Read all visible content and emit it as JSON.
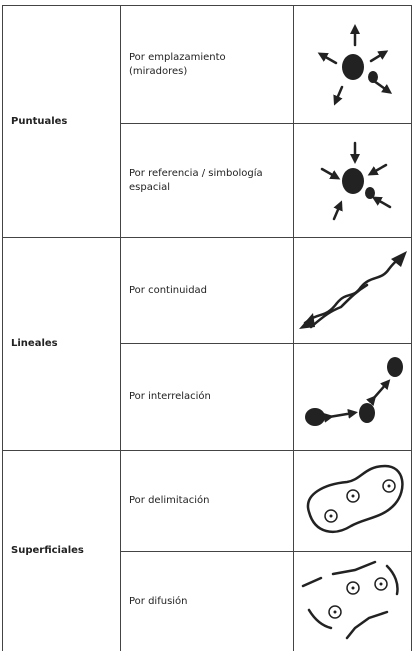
{
  "table": {
    "rows": [
      {
        "group": "Puntuales",
        "items": [
          "Por emplazamiento (miradores)",
          "Por referencia / simbología espacial"
        ]
      },
      {
        "group": "Lineales",
        "items": [
          "Por continuidad",
          "Por interrelación"
        ]
      },
      {
        "group": "Superficiales",
        "items": [
          "Por delimitación",
          "Por difusión"
        ]
      }
    ]
  }
}
